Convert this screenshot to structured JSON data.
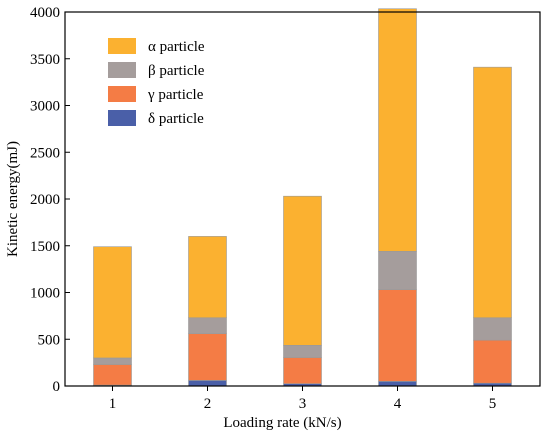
{
  "chart_data": {
    "type": "bar",
    "stacked": true,
    "categories": [
      "1",
      "2",
      "3",
      "4",
      "5"
    ],
    "xlabel": "Loading rate  (kN/s)",
    "ylabel": "Kinetic energy(mJ)",
    "ylim": [
      0,
      4000
    ],
    "yticks": [
      0,
      500,
      1000,
      1500,
      2000,
      2500,
      3000,
      3500,
      4000
    ],
    "legend_position": "top-left",
    "grid": false,
    "series": [
      {
        "name": "δ particle",
        "color": "#4a5fa8",
        "values": [
          10,
          60,
          25,
          50,
          30
        ]
      },
      {
        "name": "γ particle",
        "color": "#f47c45",
        "values": [
          220,
          500,
          280,
          980,
          460
        ]
      },
      {
        "name": "β particle",
        "color": "#a59d9c",
        "values": [
          70,
          170,
          130,
          410,
          240
        ]
      },
      {
        "name": "α particle",
        "color": "#fbb130",
        "values": [
          1190,
          870,
          1595,
          2595,
          2680
        ]
      }
    ]
  }
}
